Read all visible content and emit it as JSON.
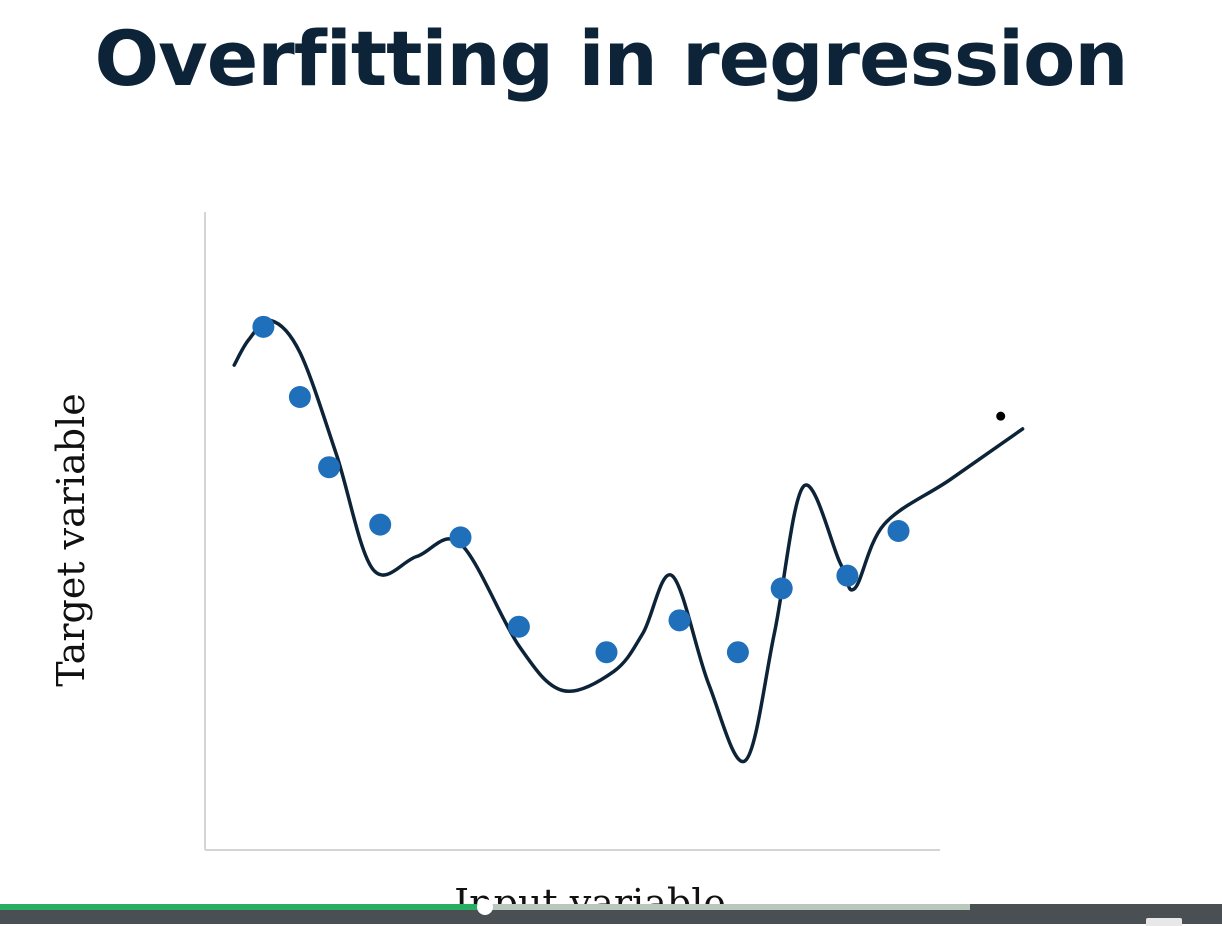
{
  "slide": {
    "title": "Overfitting in regression"
  },
  "chart_data": {
    "type": "scatter",
    "xlabel": "Input variable",
    "ylabel": "Target variable",
    "xlim": [
      0,
      10
    ],
    "ylim": [
      0,
      10
    ],
    "grid": false,
    "points": [
      {
        "x": 0.8,
        "y": 8.2
      },
      {
        "x": 1.3,
        "y": 7.1
      },
      {
        "x": 1.7,
        "y": 6.0
      },
      {
        "x": 2.4,
        "y": 5.1
      },
      {
        "x": 3.5,
        "y": 4.9
      },
      {
        "x": 4.3,
        "y": 3.5
      },
      {
        "x": 5.5,
        "y": 3.1
      },
      {
        "x": 6.5,
        "y": 3.6
      },
      {
        "x": 7.3,
        "y": 3.1
      },
      {
        "x": 7.9,
        "y": 4.1
      },
      {
        "x": 8.8,
        "y": 4.3
      },
      {
        "x": 9.5,
        "y": 5.0
      }
    ],
    "fit_curve": [
      {
        "x": 0.4,
        "y": 7.6
      },
      {
        "x": 0.6,
        "y": 8.0
      },
      {
        "x": 0.9,
        "y": 8.3
      },
      {
        "x": 1.3,
        "y": 7.8
      },
      {
        "x": 1.8,
        "y": 6.2
      },
      {
        "x": 2.3,
        "y": 4.4
      },
      {
        "x": 2.9,
        "y": 4.6
      },
      {
        "x": 3.5,
        "y": 4.8
      },
      {
        "x": 4.3,
        "y": 3.2
      },
      {
        "x": 4.9,
        "y": 2.5
      },
      {
        "x": 5.6,
        "y": 2.8
      },
      {
        "x": 6.0,
        "y": 3.4
      },
      {
        "x": 6.4,
        "y": 4.3
      },
      {
        "x": 6.9,
        "y": 2.6
      },
      {
        "x": 7.4,
        "y": 1.4
      },
      {
        "x": 7.8,
        "y": 3.4
      },
      {
        "x": 8.2,
        "y": 5.7
      },
      {
        "x": 8.7,
        "y": 4.5
      },
      {
        "x": 8.9,
        "y": 4.1
      },
      {
        "x": 9.3,
        "y": 5.1
      },
      {
        "x": 10.2,
        "y": 5.8
      },
      {
        "x": 11.2,
        "y": 6.6
      }
    ],
    "point_color": "#1f6fba",
    "curve_color": "#0d2338",
    "annotations": [
      {
        "x": 10.9,
        "y": 6.8,
        "kind": "dot"
      }
    ]
  },
  "player": {
    "progress": 0.5,
    "played_color": "#27ae60",
    "track_color": "#b9c7bd",
    "bar_color": "#4a4f54"
  }
}
